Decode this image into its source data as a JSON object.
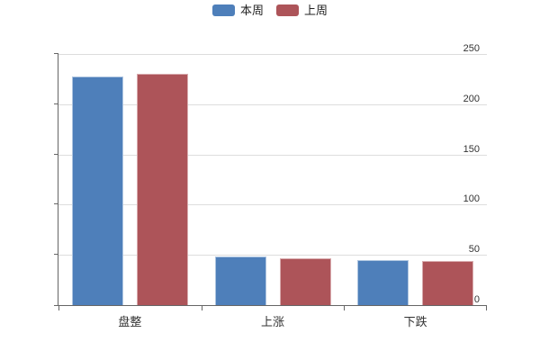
{
  "chart_data": {
    "type": "bar",
    "title": "",
    "xlabel": "",
    "ylabel": "",
    "categories": [
      "盘整",
      "上涨",
      "下跌"
    ],
    "series": [
      {
        "name": "本周",
        "color": "#4e7fba",
        "border_color": "#aec5e0",
        "values": [
          228,
          48,
          45
        ]
      },
      {
        "name": "上周",
        "color": "#ad5459",
        "border_color": "#d8abae",
        "values": [
          230,
          47,
          44
        ]
      }
    ],
    "ylim": [
      0,
      250
    ],
    "y_ticks": [
      0,
      50,
      100,
      150,
      200,
      250
    ],
    "grid": true,
    "legend_position": "top-center"
  },
  "colors": {
    "background": "#ffffff",
    "axis": "#666666",
    "gridline": "#dddddd",
    "tick_label": "#333333",
    "legend_text": "#222222"
  }
}
